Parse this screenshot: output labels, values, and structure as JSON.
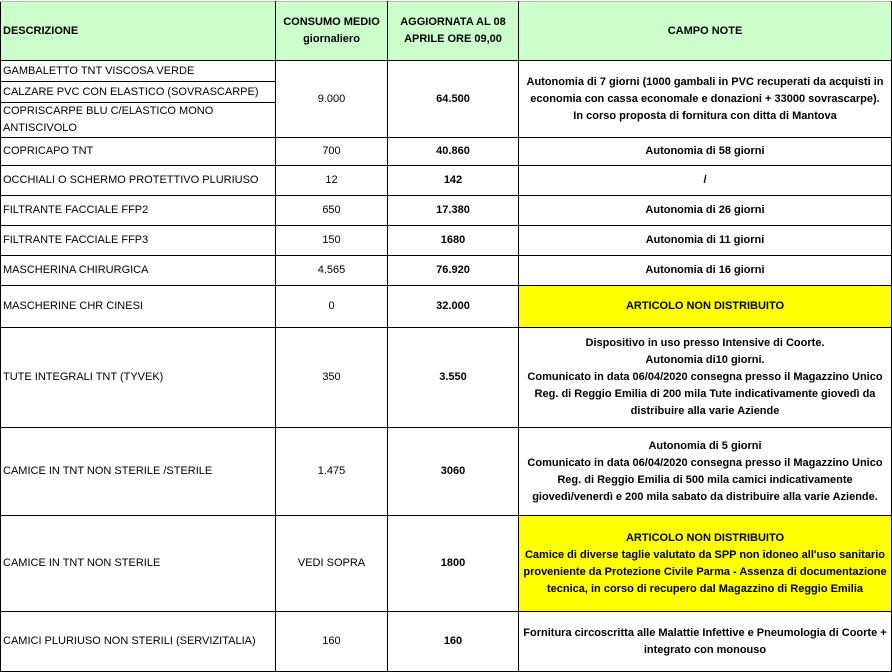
{
  "headers": {
    "descrizione": "DESCRIZIONE",
    "consumo": "CONSUMO MEDIO giornaliero",
    "aggiornata": "AGGIORNATA AL 08 APRILE ORE 09,00",
    "note": "CAMPO NOTE"
  },
  "group": {
    "items": [
      "GAMBALETTO TNT VISCOSA VERDE",
      "CALZARE PVC CON ELASTICO (SOVRASCARPE)",
      "COPRISCARPE BLU C/ELASTICO MONO ANTISCIVOLO"
    ],
    "consumo": "9.000",
    "aggiornata": "64.500",
    "note": [
      "Autonomia di 7 giorni (1000 gambali in PVC recuperati da acquisti in economia con cassa economale e donazioni + 33000 sovrascarpe).",
      "In corso proposta di fornitura con ditta di Mantova"
    ]
  },
  "rows": [
    {
      "descrizione": "COPRICAPO TNT",
      "consumo": "700",
      "aggiornata": "40.860",
      "note": [
        "Autonomia di 58 giorni"
      ],
      "highlight": false
    },
    {
      "descrizione": "OCCHIALI O SCHERMO PROTETTIVO PLURIUSO",
      "consumo": "12",
      "aggiornata": "142",
      "note": [
        "/"
      ],
      "highlight": false
    },
    {
      "descrizione": "FILTRANTE FACCIALE FFP2",
      "consumo": "650",
      "aggiornata": "17.380",
      "note": [
        "Autonomia di 26 giorni"
      ],
      "highlight": false
    },
    {
      "descrizione": "FILTRANTE FACCIALE FFP3",
      "consumo": "150",
      "aggiornata": "1680",
      "note": [
        "Autonomia di 11 giorni"
      ],
      "highlight": false
    },
    {
      "descrizione": "MASCHERINA CHIRURGICA",
      "consumo": "4.565",
      "aggiornata": "76.920",
      "note": [
        "Autonomia di 16 giorni"
      ],
      "highlight": false
    },
    {
      "descrizione": "MASCHERINE CHR CINESI",
      "consumo": "0",
      "aggiornata": "32.000",
      "note": [
        "ARTICOLO NON DISTRIBUITO"
      ],
      "highlight": true
    },
    {
      "descrizione": "TUTE INTEGRALI TNT (TYVEK)",
      "consumo": "350",
      "aggiornata": "3.550",
      "note": [
        "Dispositivo in uso presso Intensive di Coorte.",
        "Autonomia di10  giorni.",
        "Comunicato in data 06/04/2020 consegna presso il Magazzino Unico Reg. di Reggio Emilia di 200 mila Tute indicativamente giovedì da distribuire alla varie Aziende"
      ],
      "highlight": false
    },
    {
      "descrizione": "CAMICE IN TNT NON STERILE /STERILE",
      "consumo": "1.475",
      "aggiornata": "3060",
      "note": [
        "Autonomia di 5 giorni",
        "Comunicato in data 06/04/2020 consegna presso il Magazzino Unico Reg. di Reggio Emilia di 500 mila camici indicativamente giovedì/venerdì e 200 mila sabato da distribuire alla varie Aziende."
      ],
      "highlight": false
    },
    {
      "descrizione": "CAMICE IN TNT NON STERILE",
      "consumo": "VEDI SOPRA",
      "aggiornata": "1800",
      "note": [
        "ARTICOLO NON DISTRIBUITO",
        "Camice di diverse taglie valutato da SPP non idoneo all'uso sanitario proveniente da Protezione Civile Parma - Assenza di documentazione tecnica, in corso di recupero dal Magazzino di Reggio Emilia"
      ],
      "highlight": true
    },
    {
      "descrizione": "CAMICI PLURIUSO NON STERILI (SERVIZITALIA)",
      "consumo": "160",
      "aggiornata": "160",
      "note": [
        "Fornitura circoscritta alle Malattie Infettive e Pneumologia di Coorte + integrato con monouso"
      ],
      "highlight": false
    }
  ],
  "colors": {
    "header_bg": "#ccffcc",
    "highlight": "#ffff00"
  }
}
